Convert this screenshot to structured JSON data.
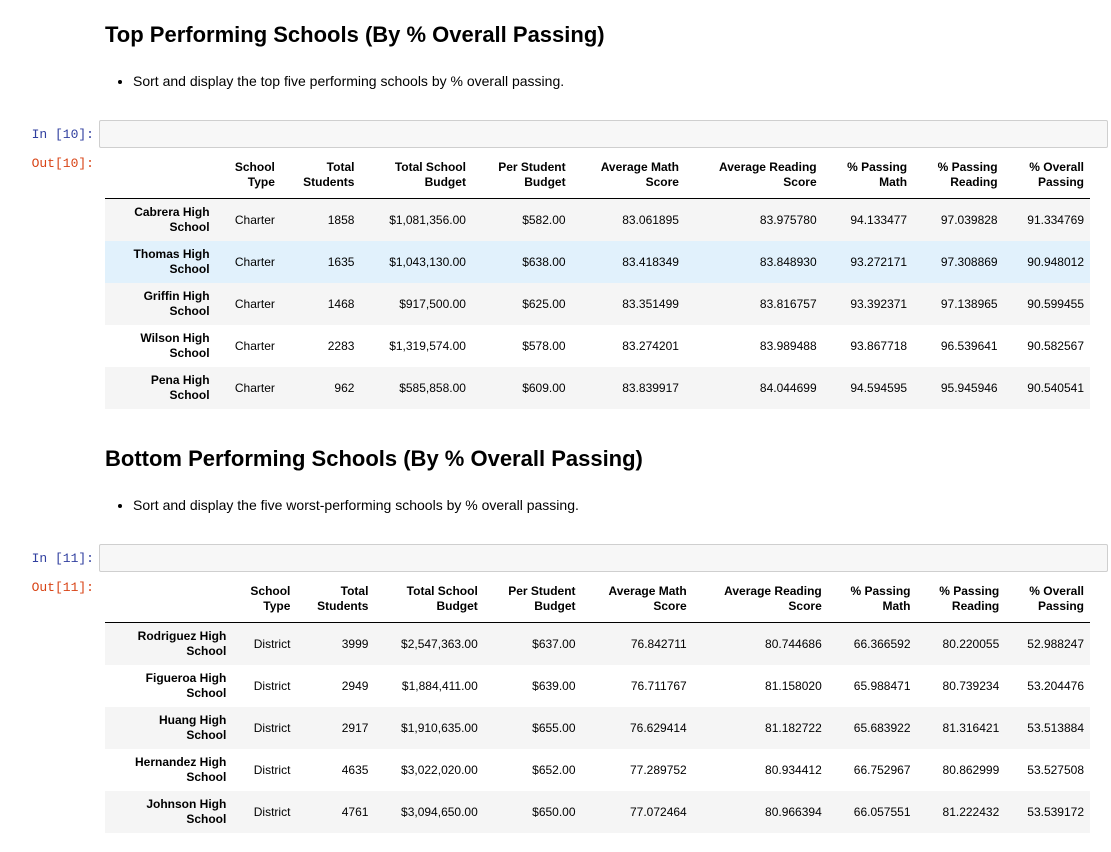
{
  "section1": {
    "title": "Top Performing Schools (By % Overall Passing)",
    "bullet": "Sort and display the top five performing schools by % overall passing.",
    "in_prompt": "In [10]:",
    "out_prompt": "Out[10]:"
  },
  "section2": {
    "title": "Bottom Performing Schools (By % Overall Passing)",
    "bullet": "Sort and display the five worst-performing schools by % overall passing.",
    "in_prompt": "In [11]:",
    "out_prompt": "Out[11]:"
  },
  "columns": [
    [
      "School",
      "Type"
    ],
    [
      "Total",
      "Students"
    ],
    [
      "Total School",
      "Budget"
    ],
    [
      "Per Student",
      "Budget"
    ],
    [
      "Average Math",
      "Score"
    ],
    [
      "Average Reading",
      "Score"
    ],
    [
      "% Passing",
      "Math"
    ],
    [
      "% Passing",
      "Reading"
    ],
    [
      "% Overall",
      "Passing"
    ]
  ],
  "top_rows": [
    {
      "name": [
        "Cabrera High",
        "School"
      ],
      "cells": [
        "Charter",
        "1858",
        "$1,081,356.00",
        "$582.00",
        "83.061895",
        "83.975780",
        "94.133477",
        "97.039828",
        "91.334769"
      ]
    },
    {
      "name": [
        "Thomas High",
        "School"
      ],
      "cells": [
        "Charter",
        "1635",
        "$1,043,130.00",
        "$638.00",
        "83.418349",
        "83.848930",
        "93.272171",
        "97.308869",
        "90.948012"
      ]
    },
    {
      "name": [
        "Griffin High",
        "School"
      ],
      "cells": [
        "Charter",
        "1468",
        "$917,500.00",
        "$625.00",
        "83.351499",
        "83.816757",
        "93.392371",
        "97.138965",
        "90.599455"
      ]
    },
    {
      "name": [
        "Wilson High",
        "School"
      ],
      "cells": [
        "Charter",
        "2283",
        "$1,319,574.00",
        "$578.00",
        "83.274201",
        "83.989488",
        "93.867718",
        "96.539641",
        "90.582567"
      ]
    },
    {
      "name": [
        "Pena High",
        "School"
      ],
      "cells": [
        "Charter",
        "962",
        "$585,858.00",
        "$609.00",
        "83.839917",
        "84.044699",
        "94.594595",
        "95.945946",
        "90.540541"
      ]
    }
  ],
  "bottom_rows": [
    {
      "name": [
        "Rodriguez High",
        "School"
      ],
      "cells": [
        "District",
        "3999",
        "$2,547,363.00",
        "$637.00",
        "76.842711",
        "80.744686",
        "66.366592",
        "80.220055",
        "52.988247"
      ]
    },
    {
      "name": [
        "Figueroa High",
        "School"
      ],
      "cells": [
        "District",
        "2949",
        "$1,884,411.00",
        "$639.00",
        "76.711767",
        "81.158020",
        "65.988471",
        "80.739234",
        "53.204476"
      ]
    },
    {
      "name": [
        "Huang High",
        "School"
      ],
      "cells": [
        "District",
        "2917",
        "$1,910,635.00",
        "$655.00",
        "76.629414",
        "81.182722",
        "65.683922",
        "81.316421",
        "53.513884"
      ]
    },
    {
      "name": [
        "Hernandez High",
        "School"
      ],
      "cells": [
        "District",
        "4635",
        "$3,022,020.00",
        "$652.00",
        "77.289752",
        "80.934412",
        "66.752967",
        "80.862999",
        "53.527508"
      ]
    },
    {
      "name": [
        "Johnson High",
        "School"
      ],
      "cells": [
        "District",
        "4761",
        "$3,094,650.00",
        "$650.00",
        "77.072464",
        "80.966394",
        "66.057551",
        "81.222432",
        "53.539172"
      ]
    }
  ]
}
